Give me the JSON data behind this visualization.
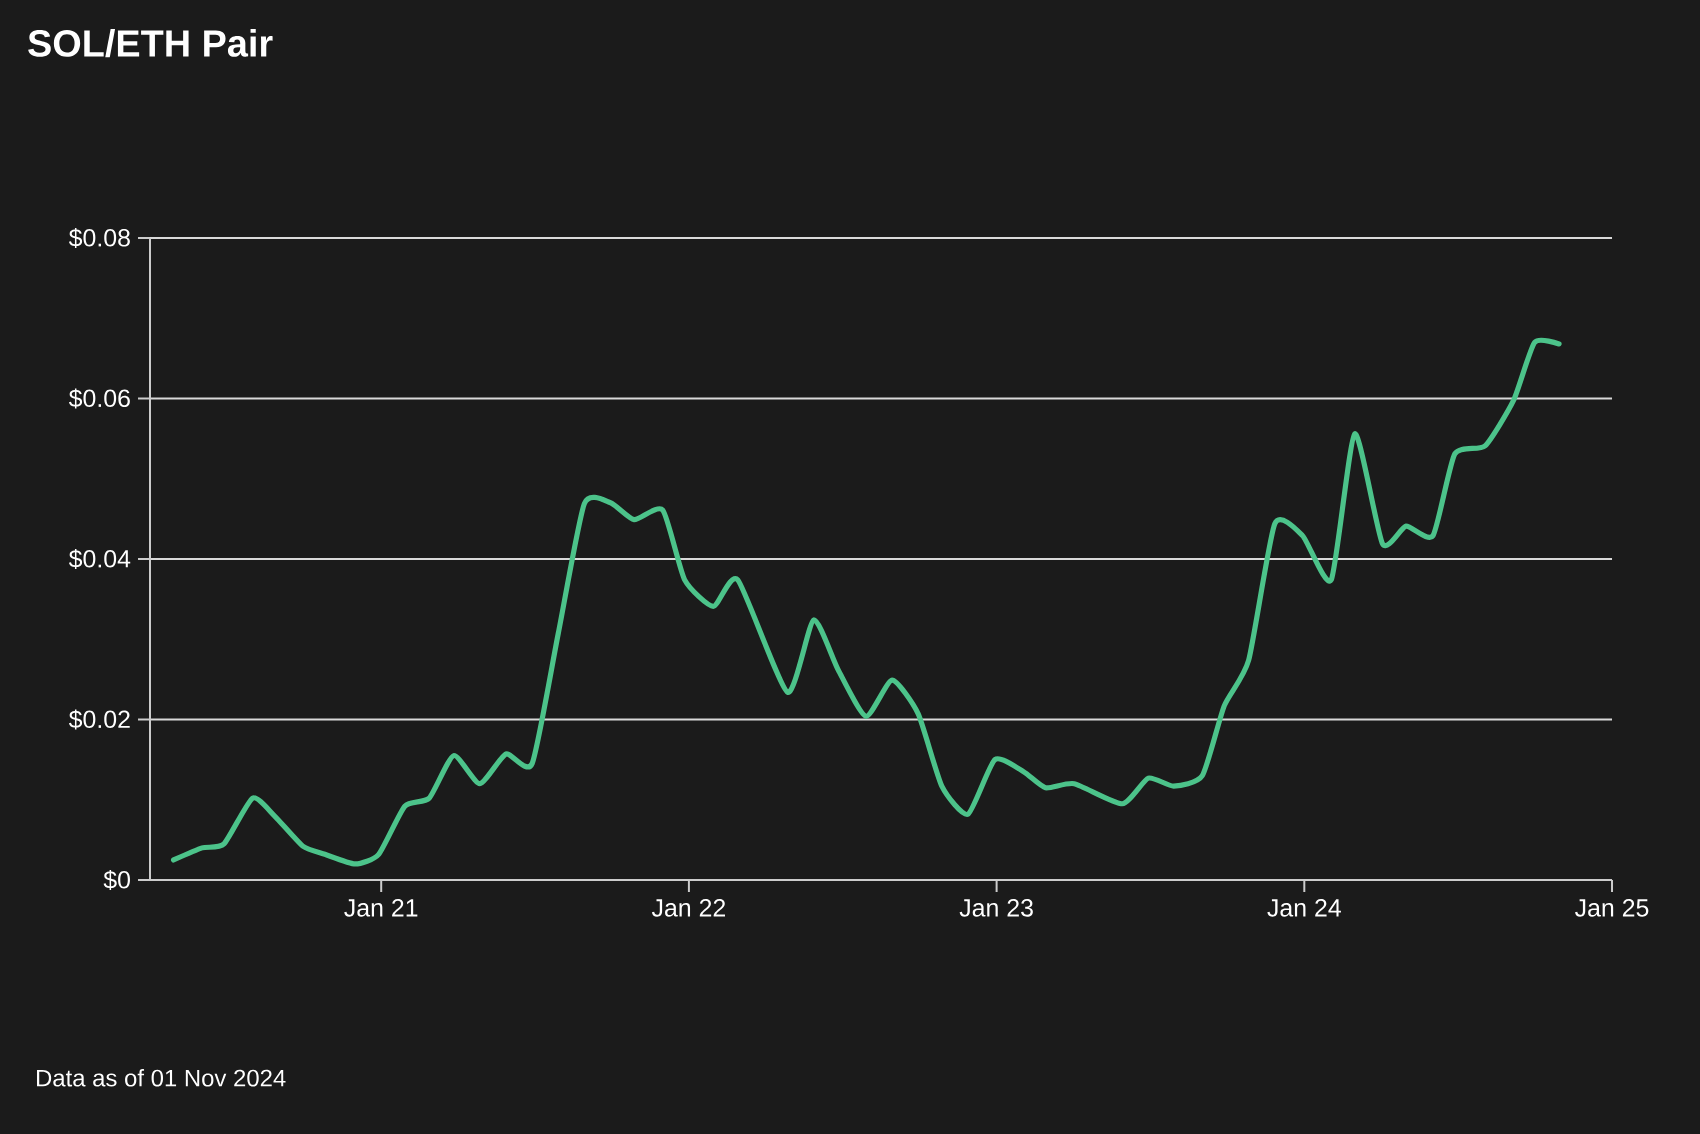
{
  "chart_data": {
    "type": "line",
    "title": "SOL/ETH Pair",
    "annotations": [
      "Data as of 01 Nov 2024"
    ],
    "x": [
      "2020-04-29",
      "2020-06-02",
      "2020-06-28",
      "2020-08-01",
      "2020-08-27",
      "2020-09-30",
      "2020-10-26",
      "2020-12-01",
      "2020-12-29",
      "2021-01-29",
      "2021-02-27",
      "2021-03-28",
      "2021-04-28",
      "2021-05-29",
      "2021-06-29",
      "2021-07-30",
      "2021-08-30",
      "2021-09-30",
      "2021-10-28",
      "2021-12-01",
      "2021-12-27",
      "2022-01-30",
      "2022-02-28",
      "2022-04-28",
      "2022-05-29",
      "2022-06-27",
      "2022-07-30",
      "2022-08-30",
      "2022-09-30",
      "2022-10-28",
      "2022-11-28",
      "2022-12-30",
      "2023-02-02",
      "2023-02-28",
      "2023-04-03",
      "2023-05-30",
      "2023-06-30",
      "2023-07-30",
      "2023-09-02",
      "2023-09-28",
      "2023-10-27",
      "2023-11-27",
      "2023-12-30",
      "2024-02-02",
      "2024-03-01",
      "2024-04-03",
      "2024-05-01",
      "2024-06-02",
      "2024-06-28",
      "2024-08-03",
      "2024-09-06",
      "2024-10-01",
      "2024-10-30"
    ],
    "series": [
      {
        "color": "#4cc38a",
        "values": [
          0.0025,
          0.004,
          0.0045,
          0.0102,
          0.008,
          0.0042,
          0.0032,
          0.002,
          0.0032,
          0.0092,
          0.0102,
          0.0155,
          0.012,
          0.0157,
          0.0145,
          0.0307,
          0.0469,
          0.047,
          0.0449,
          0.0461,
          0.0374,
          0.0341,
          0.0374,
          0.0234,
          0.0324,
          0.0262,
          0.0204,
          0.0249,
          0.0207,
          0.0117,
          0.0082,
          0.015,
          0.0135,
          0.0115,
          0.012,
          0.0095,
          0.0127,
          0.0117,
          0.013,
          0.0217,
          0.0274,
          0.0444,
          0.0429,
          0.0374,
          0.0556,
          0.0419,
          0.0441,
          0.0429,
          0.0531,
          0.0541,
          0.0598,
          0.067,
          0.0668
        ]
      }
    ],
    "xlim": [
      "2020-04",
      "2025"
    ],
    "xticks": [
      {
        "value": "2021",
        "label": "Jan 21"
      },
      {
        "value": "2022",
        "label": "Jan 22"
      },
      {
        "value": "2023",
        "label": "Jan 23"
      },
      {
        "value": "2024",
        "label": "Jan 24"
      },
      {
        "value": "2025",
        "label": "Jan 25"
      }
    ],
    "ylim": [
      0,
      0.08
    ],
    "yticks": [
      {
        "value": 0,
        "label": "$0"
      },
      {
        "value": 0.02,
        "label": "$0.02"
      },
      {
        "value": 0.04,
        "label": "$0.04"
      },
      {
        "value": 0.06,
        "label": "$0.06"
      },
      {
        "value": 0.08,
        "label": "$0.08"
      }
    ],
    "grid": "y",
    "marker": "none",
    "line_style": "solid"
  }
}
